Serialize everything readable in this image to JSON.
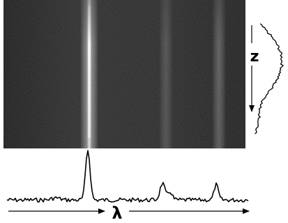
{
  "figure": {
    "z_label": "z",
    "lambda_label": "λ",
    "colors": {
      "background": "#ffffff",
      "image_dark": "#1f1f1f",
      "line_ink": "#000000",
      "streak_glow": "#ffffff"
    }
  }
}
